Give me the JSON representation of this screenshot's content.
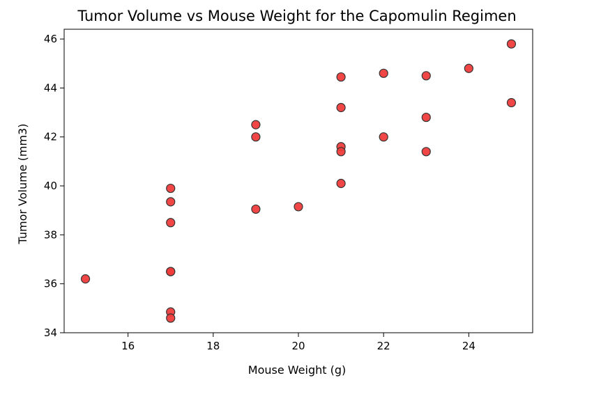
{
  "chart_data": {
    "type": "scatter",
    "title": "Tumor Volume vs Mouse Weight for the Capomulin Regimen",
    "xlabel": "Mouse Weight (g)",
    "ylabel": "Tumor Volume (mm3)",
    "xlim": [
      14.5,
      25.5
    ],
    "ylim": [
      34,
      46.4
    ],
    "xticks": [
      16,
      18,
      20,
      22,
      24
    ],
    "yticks": [
      34,
      36,
      38,
      40,
      42,
      44,
      46
    ],
    "grid": false,
    "marker_color": "#f03c3c",
    "marker_edge_color": "#333333",
    "series": [
      {
        "points": [
          {
            "x": 15,
            "y": 36.2
          },
          {
            "x": 17,
            "y": 39.9
          },
          {
            "x": 17,
            "y": 39.35
          },
          {
            "x": 17,
            "y": 38.5
          },
          {
            "x": 17,
            "y": 36.5
          },
          {
            "x": 17,
            "y": 36.5
          },
          {
            "x": 17,
            "y": 34.85
          },
          {
            "x": 17,
            "y": 34.6
          },
          {
            "x": 19,
            "y": 42.5
          },
          {
            "x": 19,
            "y": 42.0
          },
          {
            "x": 19,
            "y": 39.05
          },
          {
            "x": 20,
            "y": 39.15
          },
          {
            "x": 21,
            "y": 44.45
          },
          {
            "x": 21,
            "y": 43.2
          },
          {
            "x": 21,
            "y": 41.6
          },
          {
            "x": 21,
            "y": 41.4
          },
          {
            "x": 21,
            "y": 40.1
          },
          {
            "x": 22,
            "y": 44.6
          },
          {
            "x": 22,
            "y": 42.0
          },
          {
            "x": 23,
            "y": 44.5
          },
          {
            "x": 23,
            "y": 42.8
          },
          {
            "x": 23,
            "y": 41.4
          },
          {
            "x": 24,
            "y": 44.8
          },
          {
            "x": 25,
            "y": 45.8
          },
          {
            "x": 25,
            "y": 43.4
          }
        ]
      }
    ]
  }
}
